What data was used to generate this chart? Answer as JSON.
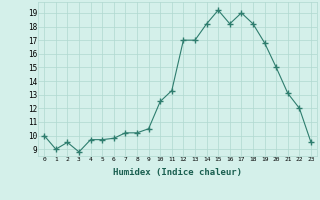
{
  "x": [
    0,
    1,
    2,
    3,
    4,
    5,
    6,
    7,
    8,
    9,
    10,
    11,
    12,
    13,
    14,
    15,
    16,
    17,
    18,
    19,
    20,
    21,
    22,
    23
  ],
  "y": [
    10.0,
    9.0,
    9.5,
    8.8,
    9.7,
    9.7,
    9.8,
    10.2,
    10.2,
    10.5,
    12.5,
    13.3,
    17.0,
    17.0,
    18.2,
    19.2,
    18.2,
    19.0,
    18.2,
    16.8,
    15.0,
    13.1,
    12.0,
    9.5
  ],
  "line_color": "#2e7d6e",
  "marker": "+",
  "marker_size": 4,
  "bg_color": "#d4f0ea",
  "grid_color": "#b0d8d0",
  "xlabel": "Humidex (Indice chaleur)",
  "ylabel_ticks": [
    9,
    10,
    11,
    12,
    13,
    14,
    15,
    16,
    17,
    18,
    19
  ],
  "ylim": [
    8.5,
    19.8
  ],
  "xlim": [
    -0.5,
    23.5
  ]
}
